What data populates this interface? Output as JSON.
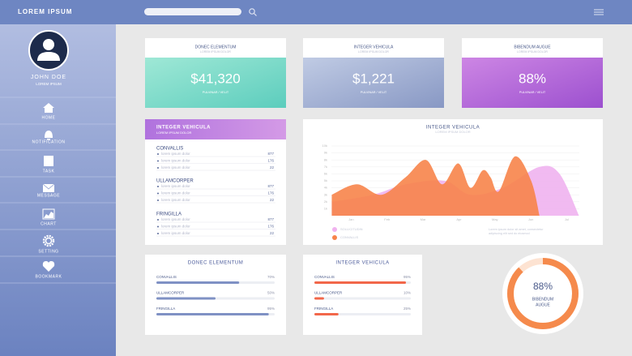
{
  "header": {
    "title": "LOREM IPSUM"
  },
  "sidebar": {
    "user": {
      "name": "JOHN DOE",
      "role": "LOREM IPSUM"
    },
    "menu": [
      "HOME",
      "NOTIFICATION",
      "TASK",
      "MESSAGE",
      "CHART",
      "SETTING",
      "BOOKMARK"
    ]
  },
  "stat_cards": [
    {
      "title": "DONEC ELEMENTUM",
      "subtitle": "LOREM IPSUM DOLOR",
      "value": "$41,320",
      "caption": "PULVINAR / VELIT"
    },
    {
      "title": "INTEGER VEHICULA",
      "subtitle": "LOREM IPSUM DOLOR",
      "value": "$1,221",
      "caption": "PULVINAR / VELIT"
    },
    {
      "title": "BIBENDUM AUGUE",
      "subtitle": "LOREM IPSUM DOLOR",
      "value": "88%",
      "caption": "PULVINAR / VELIT"
    }
  ],
  "list_card": {
    "title": "INTEGER VEHICULA",
    "subtitle": "LOREM IPSUM DOLOR",
    "groups": [
      {
        "name": "CONVALLIS",
        "items": [
          {
            "label": "lorem ipsum dolor",
            "value": 877
          },
          {
            "label": "lorem ipsum dolor",
            "value": 176
          },
          {
            "label": "lorem ipsum dolor",
            "value": 22
          }
        ]
      },
      {
        "name": "ULLAMCORPER",
        "items": [
          {
            "label": "lorem ipsum dolor",
            "value": 877
          },
          {
            "label": "lorem ipsum dolor",
            "value": 176
          },
          {
            "label": "lorem ipsum dolor",
            "value": 22
          }
        ]
      },
      {
        "name": "FRINGILLA",
        "items": [
          {
            "label": "lorem ipsum dolor",
            "value": 877
          },
          {
            "label": "lorem ipsum dolor",
            "value": 176
          },
          {
            "label": "lorem ipsum dolor",
            "value": 22
          }
        ]
      }
    ]
  },
  "area_chart": {
    "type": "area",
    "title": "INTEGER VEHICULA",
    "subtitle": "LOREM IPSUM DOLOR",
    "xlim": [
      -0.55,
      6.35
    ],
    "xticks": [
      {
        "value": 0,
        "label": "Jan"
      },
      {
        "value": 1,
        "label": "Feb"
      },
      {
        "value": 2,
        "label": "Mar"
      },
      {
        "value": 3,
        "label": "Apr"
      },
      {
        "value": 4,
        "label": "May"
      },
      {
        "value": 5,
        "label": "Jun"
      },
      {
        "value": 6,
        "label": "Jul"
      }
    ],
    "ylim": [
      0,
      10
    ],
    "yticks": [
      {
        "value": 1,
        "label": "1k"
      },
      {
        "value": 2,
        "label": "2k"
      },
      {
        "value": 3,
        "label": "3k"
      },
      {
        "value": 4,
        "label": "4k"
      },
      {
        "value": 5,
        "label": "5k"
      },
      {
        "value": 6,
        "label": "6k"
      },
      {
        "value": 7,
        "label": "7k"
      },
      {
        "value": 8,
        "label": "8k"
      },
      {
        "value": 9,
        "label": "9k"
      },
      {
        "value": 10,
        "label": "10k"
      }
    ],
    "grid": true,
    "series": [
      {
        "name": "SOLLICITUDIN",
        "color": "#f0b2ef",
        "x": [
          -0.54,
          0.61,
          1.51,
          2.6,
          3.32,
          4.22,
          5.24,
          5.8,
          6.34
        ],
        "values": [
          2,
          3,
          4.5,
          5,
          3,
          4,
          7,
          6,
          0
        ]
      },
      {
        "name": "CONVALLIS",
        "color": "#f7844a",
        "x": [
          -0.54,
          0.16,
          0.84,
          1.51,
          2.08,
          2.53,
          2.98,
          3.32,
          3.66,
          3.88,
          4.11,
          4.56,
          5.01,
          5.24
        ],
        "values": [
          3,
          4.5,
          3,
          5.5,
          8,
          4.5,
          7.5,
          4,
          6.5,
          5.5,
          3.5,
          8.5,
          5,
          0
        ]
      }
    ],
    "note": [
      "Lorem ipsum dolor sit amet, consectetur",
      "adipiscing elit sed do eiusmod"
    ]
  },
  "progress_cards": [
    {
      "title": "DONEC ELEMENTUM",
      "color": "#7f91c4",
      "items": [
        {
          "label": "CONVALLIS",
          "value": 70,
          "value_label": "70%"
        },
        {
          "label": "ULLAMCORPER",
          "value": 50,
          "value_label": "50%"
        },
        {
          "label": "FRINGILLA",
          "value": 95,
          "value_label": "95%"
        }
      ]
    },
    {
      "title": "INTEGER VEHICULA",
      "color": "#f2674a",
      "items": [
        {
          "label": "CONVALLIS",
          "value": 95,
          "value_label": "95%"
        },
        {
          "label": "ULLAMCORPER",
          "value": 10,
          "value_label": "10%"
        },
        {
          "label": "FRINGILLA",
          "value": 25,
          "value_label": "25%"
        }
      ]
    }
  ],
  "donut": {
    "value": 88,
    "value_label": "88%",
    "label": [
      "BIBENDUM",
      "AUGUE"
    ],
    "color": "#f58a4c"
  }
}
